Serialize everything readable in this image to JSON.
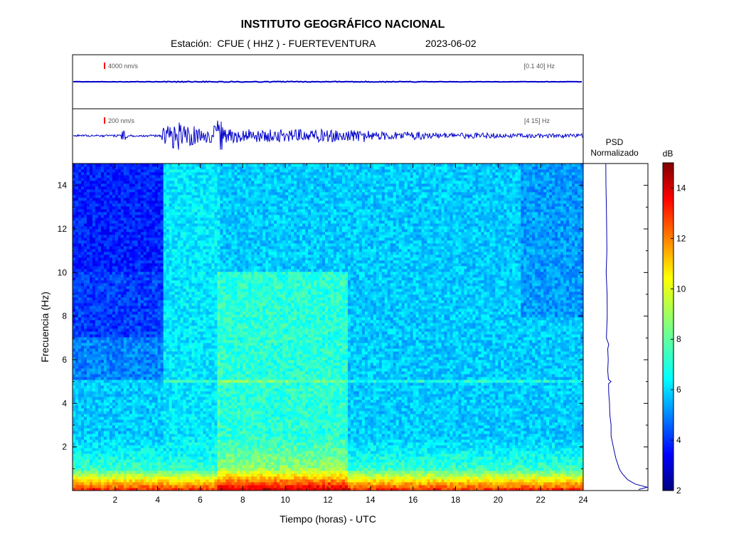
{
  "header": {
    "title": "INSTITUTO GEOGRÁFICO NACIONAL",
    "station_label": "Estación:  CFUE ( HHZ ) - FUERTEVENTURA",
    "date": "2023-06-02"
  },
  "traces": [
    {
      "scale_label": "4000 nm/s",
      "band_label": "[0.1 40] Hz"
    },
    {
      "scale_label": "200 nm/s",
      "band_label": "[4 15] Hz"
    }
  ],
  "psd": {
    "title_line1": "PSD",
    "title_line2": "Normalizado"
  },
  "colorbar": {
    "unit": "dB",
    "range": [
      2,
      15
    ],
    "ticks": [
      "2",
      "4",
      "6",
      "8",
      "10",
      "12",
      "14"
    ]
  },
  "chart_data": {
    "type": "heatmap",
    "xlabel": "Tiempo (horas) - UTC",
    "ylabel": "Frecuencia  (Hz)",
    "xlim": [
      0,
      24
    ],
    "ylim": [
      0,
      15
    ],
    "x_ticks": [
      "2",
      "4",
      "6",
      "8",
      "10",
      "12",
      "14",
      "16",
      "18",
      "20",
      "22",
      "24"
    ],
    "y_ticks": [
      "2",
      "4",
      "6",
      "8",
      "10",
      "12",
      "14"
    ],
    "psd_profile": {
      "freq": [
        0.05,
        0.15,
        0.3,
        0.5,
        0.8,
        1.0,
        1.5,
        2,
        2.5,
        3,
        3.5,
        4,
        4.5,
        4.9,
        5.0,
        5.1,
        5.5,
        6,
        6.5,
        6.7,
        7,
        8,
        9,
        10,
        11,
        12,
        13,
        14,
        15
      ],
      "level": [
        0.8,
        1.0,
        0.72,
        0.55,
        0.42,
        0.36,
        0.27,
        0.21,
        0.17,
        0.14,
        0.12,
        0.1,
        0.09,
        0.09,
        0.15,
        0.1,
        0.08,
        0.07,
        0.06,
        0.08,
        0.06,
        0.05,
        0.05,
        0.04,
        0.04,
        0.04,
        0.03,
        0.03,
        0.03
      ]
    }
  }
}
